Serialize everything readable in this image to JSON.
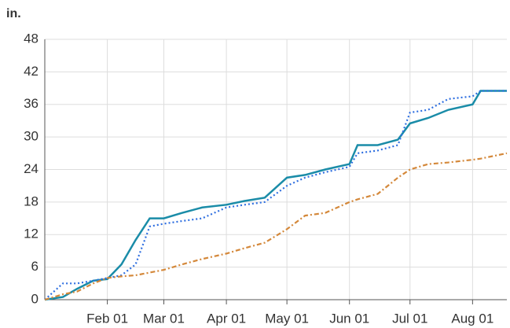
{
  "chart_data": {
    "type": "line",
    "y_label": "in.",
    "x": [
      "Jan 01",
      "Jan 10",
      "Jan 17",
      "Jan 25",
      "Feb 01",
      "Feb 08",
      "Feb 15",
      "Feb 22",
      "Mar 01",
      "Mar 10",
      "Mar 20",
      "Apr 01",
      "Apr 10",
      "Apr 20",
      "May 01",
      "May 10",
      "May 20",
      "Jun 01",
      "Jun 05",
      "Jun 15",
      "Jun 25",
      "Jul 01",
      "Jul 10",
      "Jul 20",
      "Aug 01",
      "Aug 05",
      "Aug 18"
    ],
    "series": [
      {
        "color": "#1a8ca8",
        "style": "solid",
        "values": [
          0,
          0.5,
          2,
          3.5,
          3.8,
          6.5,
          11,
          15,
          15,
          16,
          17,
          17.5,
          18.2,
          18.8,
          22.5,
          23,
          24,
          25,
          28.5,
          28.5,
          29.5,
          32.5,
          33.5,
          35,
          36,
          38.5,
          38.5
        ]
      },
      {
        "color": "#2f6fe0",
        "style": "dotted",
        "values": [
          0,
          3,
          3,
          3.5,
          4,
          4.5,
          6.5,
          13.5,
          14,
          14.5,
          15,
          17,
          17.5,
          18,
          21,
          22.5,
          23.5,
          24.5,
          27,
          27.5,
          28.5,
          34.5,
          35,
          37,
          37.5,
          38.5,
          38.5
        ]
      },
      {
        "color": "#d4883a",
        "style": "dashdot",
        "values": [
          0,
          1,
          1.5,
          3,
          4,
          4.3,
          4.5,
          5,
          5.5,
          6.5,
          7.5,
          8.5,
          9.5,
          10.5,
          13,
          15.5,
          16,
          18,
          18.5,
          19.5,
          22.5,
          24,
          25,
          25.3,
          25.8,
          26,
          27
        ]
      }
    ],
    "xlim": [
      "Jan 01",
      "Aug 18"
    ],
    "xticks": [
      "Feb 01",
      "Mar 01",
      "Apr 01",
      "May 01",
      "Jun 01",
      "Jul 01",
      "Aug 01"
    ],
    "ylim": [
      0,
      48
    ],
    "yticks": [
      0,
      6,
      12,
      18,
      24,
      30,
      36,
      42,
      48
    ],
    "grid": true
  }
}
